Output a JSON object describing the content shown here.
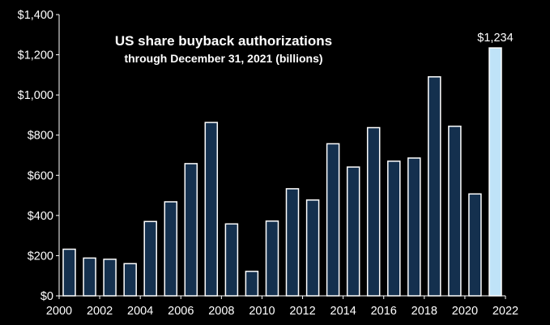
{
  "chart_data": {
    "type": "bar",
    "title": "US share buyback authorizations",
    "subtitle": "through December 31, 2021 (billions)",
    "xlabel": "",
    "ylabel": "",
    "x": [
      2000,
      2001,
      2002,
      2003,
      2004,
      2005,
      2006,
      2007,
      2008,
      2009,
      2010,
      2011,
      2012,
      2013,
      2014,
      2015,
      2016,
      2017,
      2018,
      2019,
      2020,
      2021
    ],
    "values": [
      232,
      188,
      182,
      160,
      370,
      468,
      658,
      863,
      358,
      122,
      372,
      533,
      477,
      757,
      641,
      837,
      670,
      686,
      1090,
      844,
      507,
      1234
    ],
    "xlim": [
      2000,
      2022
    ],
    "ylim": [
      0,
      1400
    ],
    "y_ticks": [
      "$0",
      "$200",
      "$400",
      "$600",
      "$800",
      "$1,000",
      "$1,200",
      "$1,400"
    ],
    "x_ticks": [
      "2000",
      "2002",
      "2004",
      "2006",
      "2008",
      "2010",
      "2012",
      "2014",
      "2016",
      "2018",
      "2020",
      "2022"
    ],
    "annotations": [
      {
        "x": 2021,
        "text": "$1,234"
      }
    ],
    "grid": false,
    "legend": "none",
    "colors": {
      "background": "#000000",
      "plot_background": "#000000",
      "bar": "#14304e",
      "bar_outline": "#ffffff",
      "highlight_bar": "#bfe3f8",
      "axis": "#ffffff",
      "text": "#ffffff"
    }
  }
}
